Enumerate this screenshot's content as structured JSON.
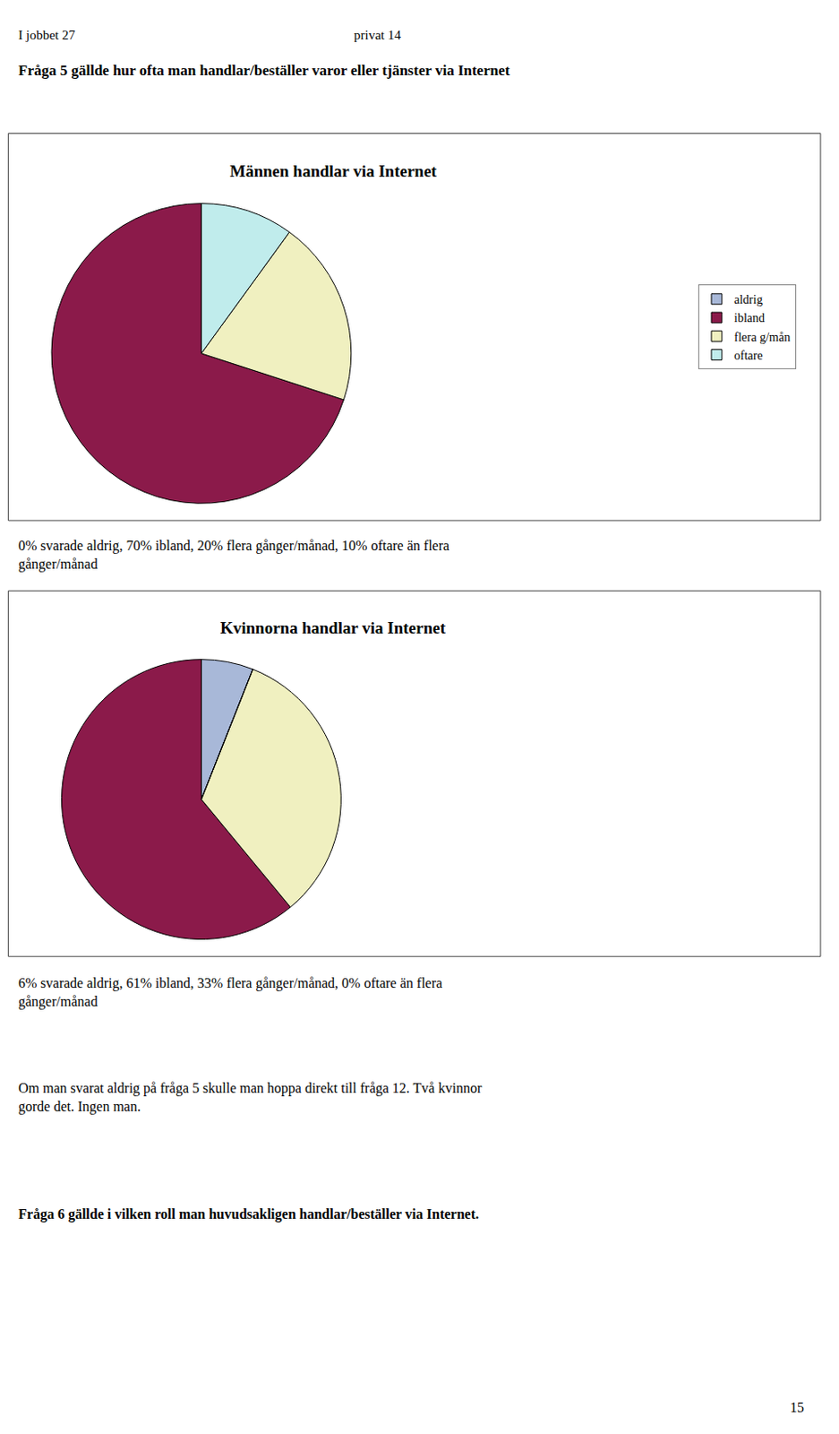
{
  "annotations": [
    "I jobbet 27",
    "privat 14",
    "Fråga 5 gällde hur ofta man handlar/beställer varor eller tjänster via Internet",
    "0% svarade aldrig, 70% ibland, 20% flera gånger/månad, 10% oftare än flera\ngånger/månad",
    "6% svarade aldrig, 61% ibland, 33% flera gånger/månad, 0% oftare än flera\ngånger/månad",
    "Om man svarat aldrig på fråga 5 skulle man hoppa direkt till fråga 12. Två kvinnor\ngorde det. Ingen man.",
    "Fråga 6 gällde i vilken roll man huvudsakligen handlar/beställer via Internet.",
    "15"
  ],
  "chart_data": [
    {
      "type": "pie",
      "title": "Männen handlar via Internet",
      "categories": [
        "aldrig",
        "ibland",
        "flera g/mån",
        "oftare"
      ],
      "values": [
        0.001,
        70,
        20,
        10
      ],
      "colors": [
        "#A8B8D8",
        "#8B1A4A",
        "#F0F0C0",
        "#C0ECEC"
      ],
      "legend": "right"
    },
    {
      "type": "pie",
      "title": "Kvinnorna handlar via Internet",
      "categories": [
        "aldrig",
        "ibland",
        "flera g/mån",
        "oftare"
      ],
      "values": [
        6,
        61,
        33,
        0.001
      ],
      "colors": [
        "#A8B8D8",
        "#8B1A4A",
        "#F0F0C0",
        "#C0ECEC"
      ],
      "legend": "right"
    }
  ]
}
